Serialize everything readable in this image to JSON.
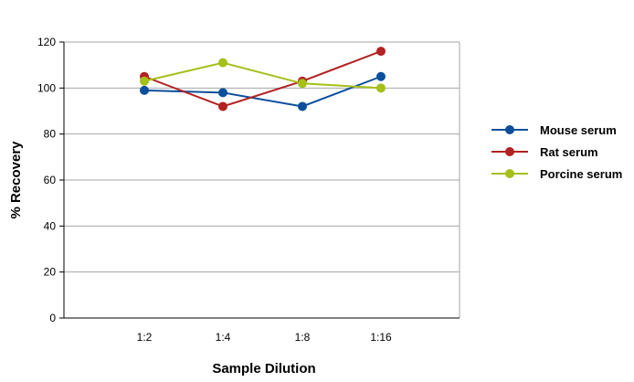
{
  "chart_data": {
    "type": "line",
    "title": "",
    "xlabel": "Sample Dilution",
    "ylabel": "% Recovery",
    "categories": [
      "1:2",
      "1:4",
      "1:8",
      "1:16"
    ],
    "ylim": [
      0,
      120
    ],
    "yticks": [
      0,
      20,
      40,
      60,
      80,
      100,
      120
    ],
    "grid": "horizontal",
    "legend_position": "right",
    "series": [
      {
        "name": "Mouse serum",
        "color": "#0b4f9c",
        "values": [
          99,
          98,
          92,
          105
        ]
      },
      {
        "name": "Rat serum",
        "color": "#b22222",
        "values": [
          105,
          92,
          103,
          116
        ]
      },
      {
        "name": "Porcine serum",
        "color": "#a6bf1a",
        "values": [
          103,
          111,
          102,
          100
        ]
      }
    ]
  }
}
